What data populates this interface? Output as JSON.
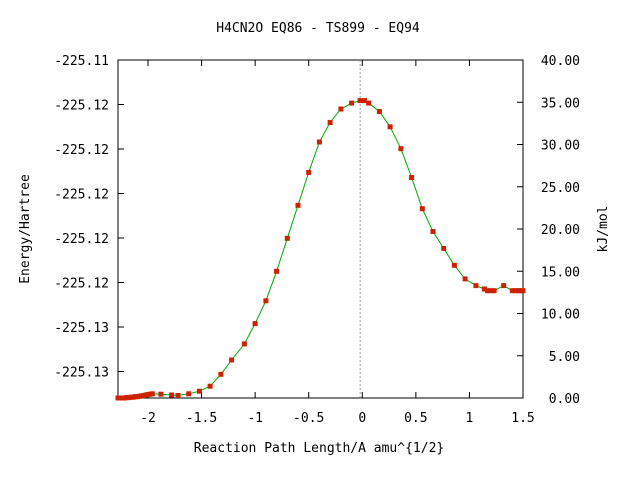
{
  "chart_data": {
    "type": "line",
    "title": "H4CN2O    EQ86 - TS899 - EQ94",
    "xlabel": "Reaction Path Length/A amu^{1/2}",
    "ylabel": "Energy/Hartree",
    "y2label": "kJ/mol",
    "xlim": [
      -2.28,
      1.5
    ],
    "y2lim": [
      0,
      40
    ],
    "x_ticks": [
      "-2",
      "-1.5",
      "-1",
      "-0.5",
      "0",
      "0.5",
      "1",
      "1.5"
    ],
    "x_tick_values": [
      -2,
      -1.5,
      -1,
      -0.5,
      0,
      0.5,
      1,
      1.5
    ],
    "y_ticks": [
      "-225.11",
      "-225.12",
      "-225.12",
      "-225.12",
      "-225.12",
      "-225.12",
      "-225.13",
      "-225.13"
    ],
    "y2_ticks": [
      "40.00",
      "35.00",
      "30.00",
      "25.00",
      "20.00",
      "15.00",
      "10.00",
      "5.00",
      "0.00"
    ],
    "y2_tick_values": [
      40,
      35,
      30,
      25,
      20,
      15,
      10,
      5,
      0
    ],
    "ts_x": -0.02,
    "colors": {
      "line": "#00aa00",
      "marker": "#cc2200",
      "ts_line": "#999999"
    },
    "series": [
      {
        "x": [
          -2.28,
          -2.26,
          -2.24,
          -2.22,
          -2.2,
          -2.18,
          -2.16,
          -2.14,
          -2.12,
          -2.1,
          -2.08,
          -2.06,
          -2.04,
          -2.02,
          -2.0,
          -1.98,
          -1.96,
          -1.88,
          -1.78,
          -1.72,
          -1.62,
          -1.52,
          -1.42,
          -1.32,
          -1.22,
          -1.1,
          -1.0,
          -0.9,
          -0.8,
          -0.7,
          -0.6,
          -0.5,
          -0.4,
          -0.3,
          -0.2,
          -0.1,
          -0.02,
          0.02,
          0.06,
          0.16,
          0.26,
          0.36,
          0.46,
          0.56,
          0.66,
          0.76,
          0.86,
          0.96,
          1.06,
          1.14,
          1.17,
          1.2,
          1.23,
          1.32,
          1.4,
          1.43,
          1.46,
          1.48,
          1.5
        ],
        "y": [
          0.0,
          0.0,
          0.0,
          0.0,
          0.05,
          0.05,
          0.1,
          0.1,
          0.15,
          0.15,
          0.2,
          0.25,
          0.3,
          0.35,
          0.4,
          0.45,
          0.5,
          0.45,
          0.35,
          0.3,
          0.5,
          0.8,
          1.4,
          2.8,
          4.5,
          6.4,
          8.8,
          11.5,
          15.0,
          18.9,
          22.8,
          26.7,
          30.3,
          32.6,
          34.2,
          34.9,
          35.2,
          35.2,
          34.9,
          33.9,
          32.1,
          29.5,
          26.1,
          22.4,
          19.7,
          17.7,
          15.7,
          14.1,
          13.3,
          12.9,
          12.7,
          12.7,
          12.7,
          13.3,
          12.7,
          12.7,
          12.7,
          12.7,
          12.7
        ]
      }
    ]
  }
}
